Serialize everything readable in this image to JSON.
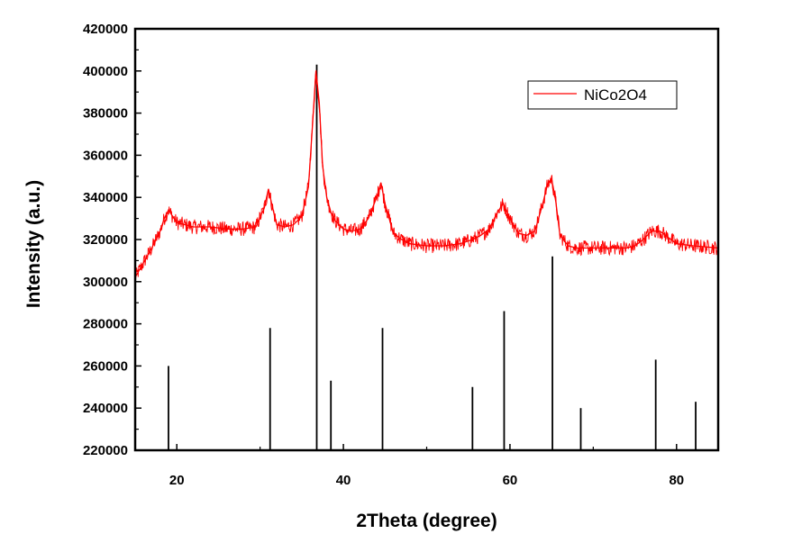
{
  "chart_data": {
    "type": "line",
    "xlabel": "2Theta (degree)",
    "ylabel": "Intensity (a.u.)",
    "xlim": [
      15,
      85
    ],
    "ylim": [
      220000,
      420000
    ],
    "x_ticks": [
      20,
      40,
      60,
      80
    ],
    "y_ticks": [
      220000,
      240000,
      260000,
      280000,
      300000,
      320000,
      340000,
      360000,
      380000,
      400000,
      420000
    ],
    "legend": {
      "position": "top-right",
      "entries": [
        "NiCo2O4"
      ]
    },
    "grid": false,
    "series": [
      {
        "name": "NiCo2O4",
        "color": "#ff0000",
        "type": "line",
        "x": [
          15,
          16,
          17,
          18,
          18.5,
          19,
          19.5,
          20,
          21,
          22,
          24,
          26,
          28,
          29.5,
          30.5,
          31,
          31.5,
          32,
          33,
          34,
          35,
          35.8,
          36.3,
          36.7,
          37.1,
          37.5,
          38,
          38.5,
          39,
          40,
          41,
          42,
          43,
          44,
          44.5,
          45,
          46,
          47,
          48,
          50,
          52,
          54,
          55.5,
          56.5,
          57.5,
          58.5,
          59.2,
          60,
          61,
          62,
          63,
          64,
          64.5,
          65,
          65.5,
          66,
          67,
          68,
          70,
          72,
          74,
          75,
          76,
          77,
          78,
          79,
          80,
          82,
          85
        ],
        "values": [
          302000,
          309000,
          316000,
          324000,
          330000,
          334000,
          331000,
          328000,
          327000,
          326000,
          326000,
          325000,
          325000,
          326000,
          335000,
          344000,
          335000,
          327000,
          326000,
          327000,
          331000,
          345000,
          375000,
          400000,
          385000,
          355000,
          340000,
          333000,
          329000,
          325000,
          324000,
          325000,
          330000,
          340000,
          347000,
          337000,
          323000,
          320000,
          318000,
          317000,
          317000,
          318000,
          320000,
          322000,
          325000,
          333000,
          337000,
          330000,
          323000,
          322000,
          324000,
          338000,
          346000,
          349000,
          338000,
          322000,
          317000,
          316000,
          316000,
          316000,
          316000,
          317000,
          320000,
          324000,
          324000,
          321000,
          318000,
          317000,
          316000
        ]
      },
      {
        "name": "",
        "color": "#000000",
        "type": "stick",
        "x": [
          19.0,
          31.2,
          36.8,
          38.5,
          44.7,
          55.5,
          59.3,
          65.1,
          68.5,
          77.5,
          82.3
        ],
        "values": [
          260000,
          278000,
          403000,
          253000,
          278000,
          250000,
          286000,
          312000,
          240000,
          263000,
          243000
        ]
      }
    ]
  }
}
